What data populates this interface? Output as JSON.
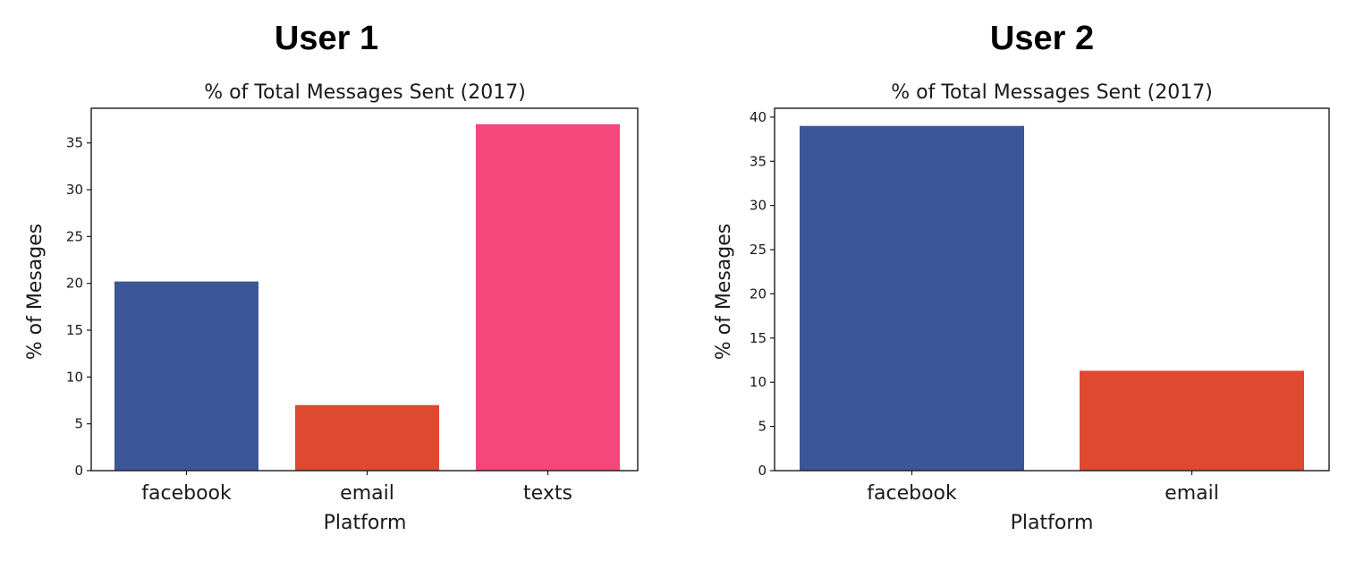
{
  "panels": [
    {
      "header": "User 1",
      "chart_data": {
        "type": "bar",
        "title": "% of Total Messages Sent (2017)",
        "xlabel": "Platform",
        "ylabel": "% of Mesages",
        "categories": [
          "facebook",
          "email",
          "texts"
        ],
        "values": [
          20.2,
          7.0,
          37.0
        ],
        "colors": [
          "#3b5798",
          "#de4a30",
          "#f5477b"
        ],
        "ylim": [
          0,
          38.7
        ],
        "yticks": [
          0,
          5,
          10,
          15,
          20,
          25,
          30,
          35
        ],
        "grid": false
      }
    },
    {
      "header": "User 2",
      "chart_data": {
        "type": "bar",
        "title": "% of Total Messages Sent (2017)",
        "xlabel": "Platform",
        "ylabel": "% of Mesages",
        "categories": [
          "facebook",
          "email"
        ],
        "values": [
          39.0,
          11.3
        ],
        "colors": [
          "#3b5798",
          "#de4a30"
        ],
        "ylim": [
          0,
          41.0
        ],
        "yticks": [
          0,
          5,
          10,
          15,
          20,
          25,
          30,
          35,
          40
        ],
        "grid": false
      }
    }
  ]
}
